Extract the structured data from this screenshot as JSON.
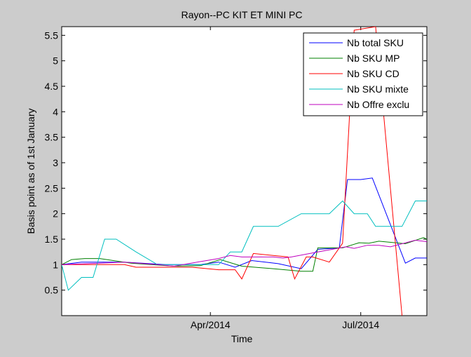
{
  "chart_data": {
    "type": "line",
    "title": "Rayon--PC KIT ET MINI PC",
    "xlabel": "Time",
    "ylabel": "Basis point as of 1st January",
    "xlim": [
      "2014-01-01",
      "2014-08-10"
    ],
    "ylim": [
      0,
      5.67
    ],
    "x_ticks": [
      {
        "date": "2014-04-01",
        "label": "Apr/2014"
      },
      {
        "date": "2014-07-01",
        "label": "Jul/2014"
      }
    ],
    "y_ticks": [
      {
        "value": 0.5,
        "label": "0.5"
      },
      {
        "value": 1,
        "label": "1"
      },
      {
        "value": 1.5,
        "label": "1.5"
      },
      {
        "value": 2,
        "label": "2"
      },
      {
        "value": 2.5,
        "label": "2.5"
      },
      {
        "value": 3,
        "label": "3"
      },
      {
        "value": 3.5,
        "label": "3.5"
      },
      {
        "value": 4,
        "label": "4"
      },
      {
        "value": 4.5,
        "label": "4.5"
      },
      {
        "value": 5,
        "label": "5"
      },
      {
        "value": 5.5,
        "label": "5.5"
      }
    ],
    "grid": false,
    "legend_position": "top-right",
    "series": [
      {
        "name": "Nb total SKU",
        "color": "#0000ff",
        "points": [
          [
            "2014-01-01",
            1.0
          ],
          [
            "2014-01-13",
            1.05
          ],
          [
            "2014-02-08",
            1.05
          ],
          [
            "2014-03-05",
            1.0
          ],
          [
            "2014-03-26",
            1.0
          ],
          [
            "2014-04-06",
            1.05
          ],
          [
            "2014-04-16",
            0.95
          ],
          [
            "2014-04-26",
            1.08
          ],
          [
            "2014-05-12",
            1.02
          ],
          [
            "2014-05-26",
            0.92
          ],
          [
            "2014-06-05",
            1.3
          ],
          [
            "2014-06-18",
            1.33
          ],
          [
            "2014-06-23",
            2.67
          ],
          [
            "2014-07-01",
            2.67
          ],
          [
            "2014-07-08",
            2.7
          ],
          [
            "2014-07-28",
            1.03
          ],
          [
            "2014-08-03",
            1.13
          ],
          [
            "2014-08-10",
            1.13
          ]
        ]
      },
      {
        "name": "Nb SKU MP",
        "color": "#008000",
        "points": [
          [
            "2014-01-01",
            1.0
          ],
          [
            "2014-01-07",
            1.1
          ],
          [
            "2014-01-15",
            1.12
          ],
          [
            "2014-01-24",
            1.12
          ],
          [
            "2014-02-12",
            1.03
          ],
          [
            "2014-03-10",
            0.97
          ],
          [
            "2014-03-26",
            0.98
          ],
          [
            "2014-04-07",
            1.1
          ],
          [
            "2014-04-20",
            0.97
          ],
          [
            "2014-05-09",
            0.92
          ],
          [
            "2014-05-26",
            0.87
          ],
          [
            "2014-06-02",
            0.87
          ],
          [
            "2014-06-05",
            1.33
          ],
          [
            "2014-06-17",
            1.33
          ],
          [
            "2014-06-20",
            1.33
          ],
          [
            "2014-06-30",
            1.43
          ],
          [
            "2014-07-06",
            1.42
          ],
          [
            "2014-07-12",
            1.46
          ],
          [
            "2014-07-28",
            1.41
          ],
          [
            "2014-08-08",
            1.53
          ],
          [
            "2014-08-10",
            1.5
          ]
        ]
      },
      {
        "name": "Nb SKU CD",
        "color": "#ff0000",
        "points": [
          [
            "2014-01-01",
            1.0
          ],
          [
            "2014-02-08",
            1.0
          ],
          [
            "2014-02-15",
            0.95
          ],
          [
            "2014-03-05",
            0.95
          ],
          [
            "2014-03-21",
            0.95
          ],
          [
            "2014-04-06",
            0.9
          ],
          [
            "2014-04-16",
            0.9
          ],
          [
            "2014-04-20",
            0.72
          ],
          [
            "2014-04-27",
            1.22
          ],
          [
            "2014-05-18",
            1.15
          ],
          [
            "2014-05-22",
            0.72
          ],
          [
            "2014-05-29",
            1.15
          ],
          [
            "2014-06-02",
            1.15
          ],
          [
            "2014-06-12",
            1.05
          ],
          [
            "2014-06-20",
            1.42
          ],
          [
            "2014-06-27",
            5.6
          ],
          [
            "2014-07-10",
            5.67
          ],
          [
            "2014-07-26",
            0.0
          ]
        ]
      },
      {
        "name": "Nb SKU mixte",
        "color": "#00bfbf",
        "points": [
          [
            "2014-01-01",
            1.0
          ],
          [
            "2014-01-05",
            0.5
          ],
          [
            "2014-01-13",
            0.75
          ],
          [
            "2014-01-20",
            0.75
          ],
          [
            "2014-01-27",
            1.5
          ],
          [
            "2014-02-03",
            1.5
          ],
          [
            "2014-02-15",
            1.25
          ],
          [
            "2014-02-28",
            1.0
          ],
          [
            "2014-03-26",
            1.0
          ],
          [
            "2014-04-06",
            1.0
          ],
          [
            "2014-04-13",
            1.25
          ],
          [
            "2014-04-20",
            1.25
          ],
          [
            "2014-04-27",
            1.75
          ],
          [
            "2014-05-12",
            1.75
          ],
          [
            "2014-05-26",
            2.0
          ],
          [
            "2014-06-12",
            2.0
          ],
          [
            "2014-06-20",
            2.25
          ],
          [
            "2014-06-27",
            2.0
          ],
          [
            "2014-07-05",
            2.0
          ],
          [
            "2014-07-10",
            1.75
          ],
          [
            "2014-07-26",
            1.75
          ],
          [
            "2014-08-03",
            2.25
          ],
          [
            "2014-08-10",
            2.25
          ]
        ]
      },
      {
        "name": "Nb Offre exclu",
        "color": "#bf00bf",
        "points": [
          [
            "2014-01-01",
            1.0
          ],
          [
            "2014-01-24",
            1.03
          ],
          [
            "2014-02-08",
            1.05
          ],
          [
            "2014-02-28",
            1.0
          ],
          [
            "2014-03-10",
            0.97
          ],
          [
            "2014-03-24",
            1.05
          ],
          [
            "2014-04-06",
            1.12
          ],
          [
            "2014-04-13",
            1.18
          ],
          [
            "2014-04-20",
            1.15
          ],
          [
            "2014-05-09",
            1.15
          ],
          [
            "2014-05-15",
            1.13
          ],
          [
            "2014-05-20",
            1.15
          ],
          [
            "2014-06-05",
            1.25
          ],
          [
            "2014-06-22",
            1.35
          ],
          [
            "2014-06-27",
            1.32
          ],
          [
            "2014-07-05",
            1.38
          ],
          [
            "2014-07-12",
            1.38
          ],
          [
            "2014-07-19",
            1.35
          ],
          [
            "2014-08-03",
            1.48
          ],
          [
            "2014-08-10",
            1.45
          ]
        ]
      }
    ]
  }
}
